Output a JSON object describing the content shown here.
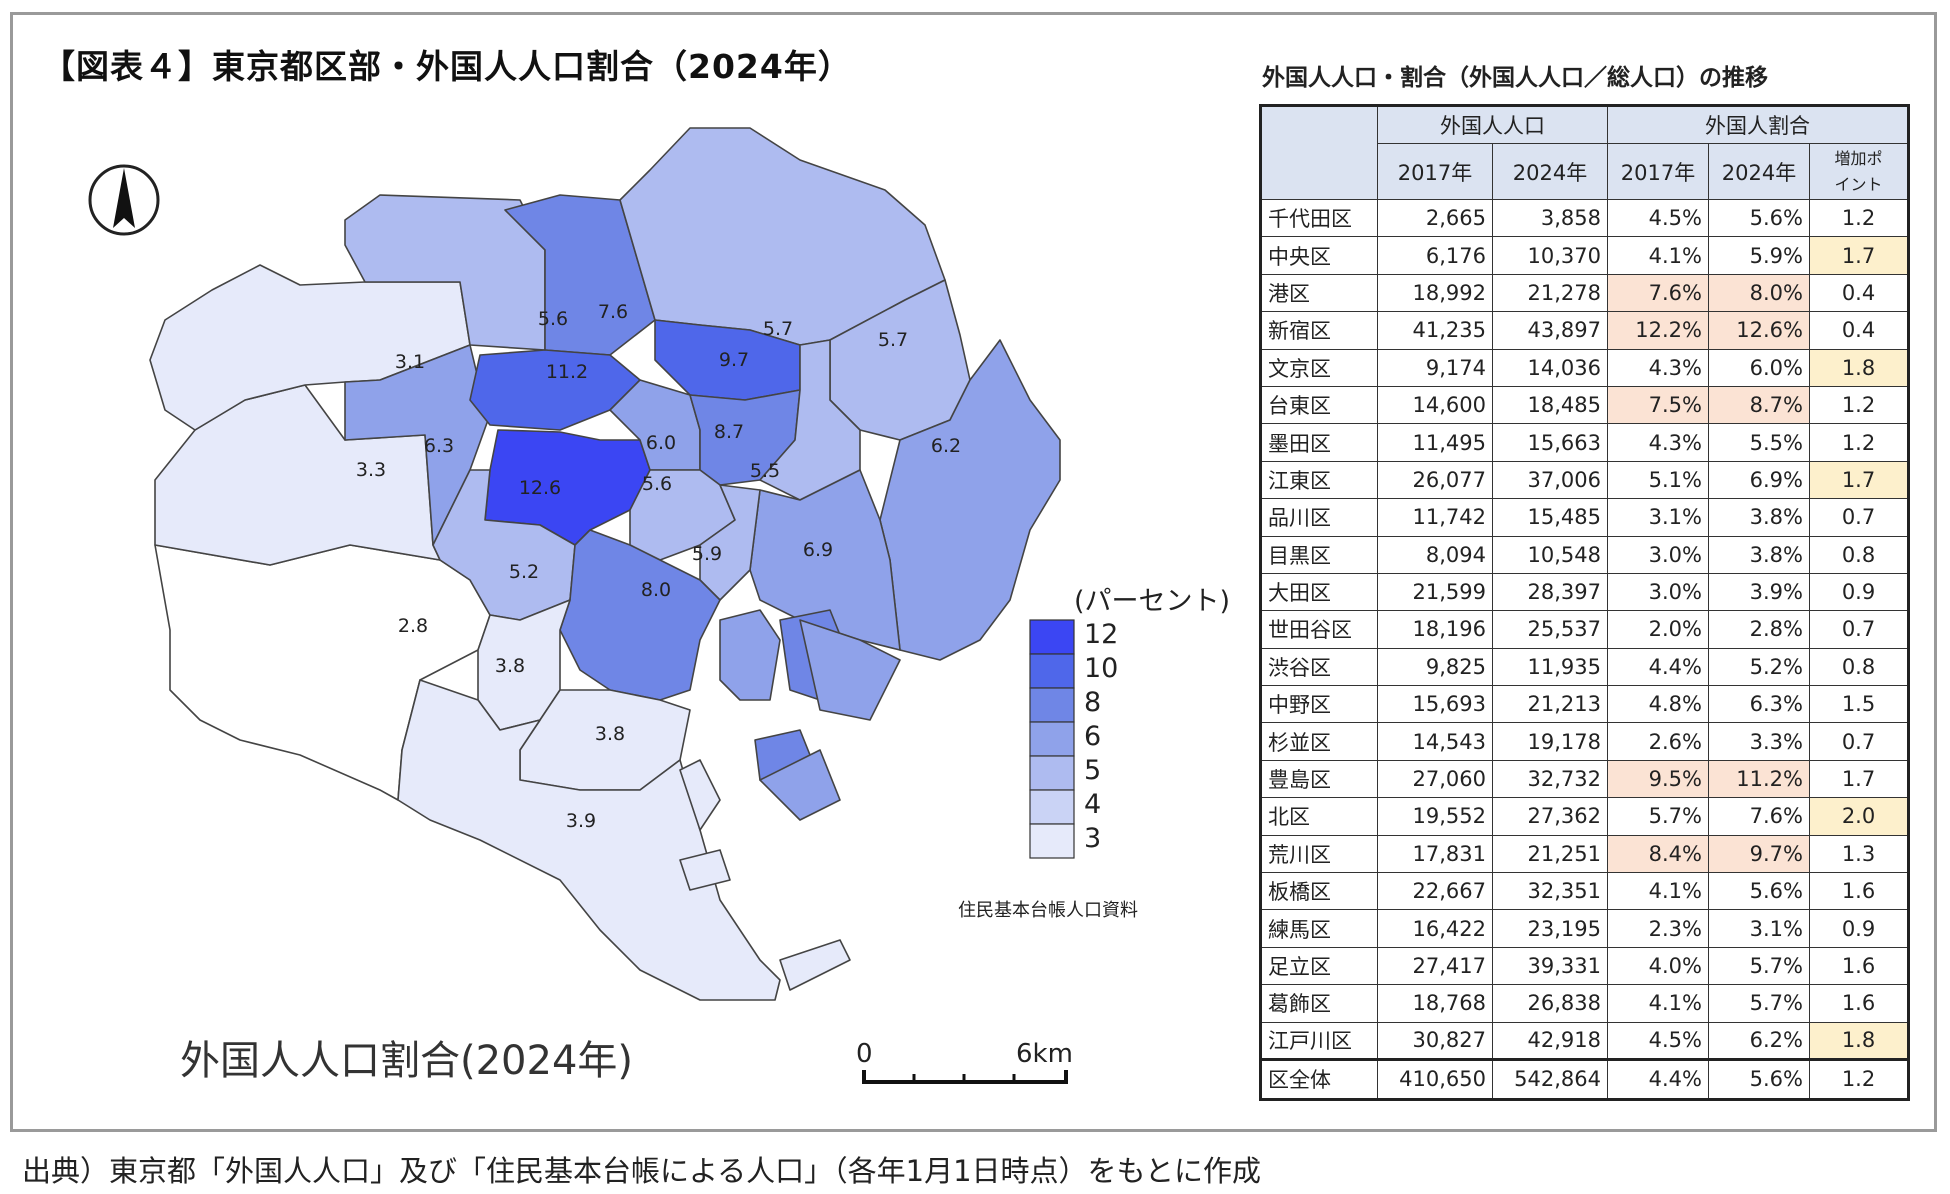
{
  "figure_title": "【図表４】東京都区部・外国人人口割合（2024年）",
  "map": {
    "subtitle": "外国人人口割合(2024年)",
    "legend_title": "(パーセント)",
    "legend_breaks": [
      "12",
      "10",
      "8",
      "6",
      "5",
      "4",
      "3"
    ],
    "legend_colors": [
      "#3b46f3",
      "#4f67ea",
      "#6f86e6",
      "#8fa2ea",
      "#aebbf0",
      "#cad3f5",
      "#e6eafa"
    ],
    "data_source_note": "住民基本台帳人口資料",
    "scale_start": "0",
    "scale_end": "6km",
    "ward_labels": [
      "5.6",
      "7.6",
      "5.7",
      "5.7",
      "3.1",
      "11.2",
      "9.7",
      "6.3",
      "6.0",
      "8.7",
      "6.2",
      "3.3",
      "12.6",
      "5.6",
      "5.5",
      "5.9",
      "6.9",
      "5.2",
      "8.0",
      "2.8",
      "3.8",
      "3.8",
      "3.9"
    ]
  },
  "table": {
    "title": "外国人人口・割合（外国人人口／総人口）の推移",
    "group_headers": [
      "外国人人口",
      "外国人割合"
    ],
    "sub_headers": [
      "2017年",
      "2024年",
      "2017年",
      "2024年",
      "増加ポイント"
    ],
    "rows": [
      {
        "ward": "千代田区",
        "pop2017": "2,665",
        "pop2024": "3,858",
        "r2017": "4.5%",
        "r2024": "5.6%",
        "pt": "1.2"
      },
      {
        "ward": "中央区",
        "pop2017": "6,176",
        "pop2024": "10,370",
        "r2017": "4.1%",
        "r2024": "5.9%",
        "pt": "1.7"
      },
      {
        "ward": "港区",
        "pop2017": "18,992",
        "pop2024": "21,278",
        "r2017": "7.6%",
        "r2024": "8.0%",
        "pt": "0.4"
      },
      {
        "ward": "新宿区",
        "pop2017": "41,235",
        "pop2024": "43,897",
        "r2017": "12.2%",
        "r2024": "12.6%",
        "pt": "0.4"
      },
      {
        "ward": "文京区",
        "pop2017": "9,174",
        "pop2024": "14,036",
        "r2017": "4.3%",
        "r2024": "6.0%",
        "pt": "1.8"
      },
      {
        "ward": "台東区",
        "pop2017": "14,600",
        "pop2024": "18,485",
        "r2017": "7.5%",
        "r2024": "8.7%",
        "pt": "1.2"
      },
      {
        "ward": "墨田区",
        "pop2017": "11,495",
        "pop2024": "15,663",
        "r2017": "4.3%",
        "r2024": "5.5%",
        "pt": "1.2"
      },
      {
        "ward": "江東区",
        "pop2017": "26,077",
        "pop2024": "37,006",
        "r2017": "5.1%",
        "r2024": "6.9%",
        "pt": "1.7"
      },
      {
        "ward": "品川区",
        "pop2017": "11,742",
        "pop2024": "15,485",
        "r2017": "3.1%",
        "r2024": "3.8%",
        "pt": "0.7"
      },
      {
        "ward": "目黒区",
        "pop2017": "8,094",
        "pop2024": "10,548",
        "r2017": "3.0%",
        "r2024": "3.8%",
        "pt": "0.8"
      },
      {
        "ward": "大田区",
        "pop2017": "21,599",
        "pop2024": "28,397",
        "r2017": "3.0%",
        "r2024": "3.9%",
        "pt": "0.9"
      },
      {
        "ward": "世田谷区",
        "pop2017": "18,196",
        "pop2024": "25,537",
        "r2017": "2.0%",
        "r2024": "2.8%",
        "pt": "0.7"
      },
      {
        "ward": "渋谷区",
        "pop2017": "9,825",
        "pop2024": "11,935",
        "r2017": "4.4%",
        "r2024": "5.2%",
        "pt": "0.8"
      },
      {
        "ward": "中野区",
        "pop2017": "15,693",
        "pop2024": "21,213",
        "r2017": "4.8%",
        "r2024": "6.3%",
        "pt": "1.5"
      },
      {
        "ward": "杉並区",
        "pop2017": "14,543",
        "pop2024": "19,178",
        "r2017": "2.6%",
        "r2024": "3.3%",
        "pt": "0.7"
      },
      {
        "ward": "豊島区",
        "pop2017": "27,060",
        "pop2024": "32,732",
        "r2017": "9.5%",
        "r2024": "11.2%",
        "pt": "1.7"
      },
      {
        "ward": "北区",
        "pop2017": "19,552",
        "pop2024": "27,362",
        "r2017": "5.7%",
        "r2024": "7.6%",
        "pt": "2.0"
      },
      {
        "ward": "荒川区",
        "pop2017": "17,831",
        "pop2024": "21,251",
        "r2017": "8.4%",
        "r2024": "9.7%",
        "pt": "1.3"
      },
      {
        "ward": "板橋区",
        "pop2017": "22,667",
        "pop2024": "32,351",
        "r2017": "4.1%",
        "r2024": "5.6%",
        "pt": "1.6"
      },
      {
        "ward": "練馬区",
        "pop2017": "16,422",
        "pop2024": "23,195",
        "r2017": "2.3%",
        "r2024": "3.1%",
        "pt": "0.9"
      },
      {
        "ward": "足立区",
        "pop2017": "27,417",
        "pop2024": "39,331",
        "r2017": "4.0%",
        "r2024": "5.7%",
        "pt": "1.6"
      },
      {
        "ward": "葛飾区",
        "pop2017": "18,768",
        "pop2024": "26,838",
        "r2017": "4.1%",
        "r2024": "5.7%",
        "pt": "1.6"
      },
      {
        "ward": "江戸川区",
        "pop2017": "30,827",
        "pop2024": "42,918",
        "r2017": "4.5%",
        "r2024": "6.2%",
        "pt": "1.8"
      }
    ],
    "total": {
      "ward": "区全体",
      "pop2017": "410,650",
      "pop2024": "542,864",
      "r2017": "4.4%",
      "r2024": "5.6%",
      "pt": "1.2"
    },
    "highlight_colors": {
      "high_share": "#fbe3d4",
      "high_increase": "#fdf0cc"
    },
    "highlight_high_share_wards": [
      "港区",
      "新宿区",
      "台東区",
      "豊島区",
      "荒川区"
    ],
    "highlight_high_increase_wards": [
      "中央区",
      "文京区",
      "江東区",
      "北区",
      "江戸川区"
    ]
  },
  "source": "出典）東京都「外国人人口」及び「住民基本台帳による人口」（各年1月1日時点）をもとに作成"
}
